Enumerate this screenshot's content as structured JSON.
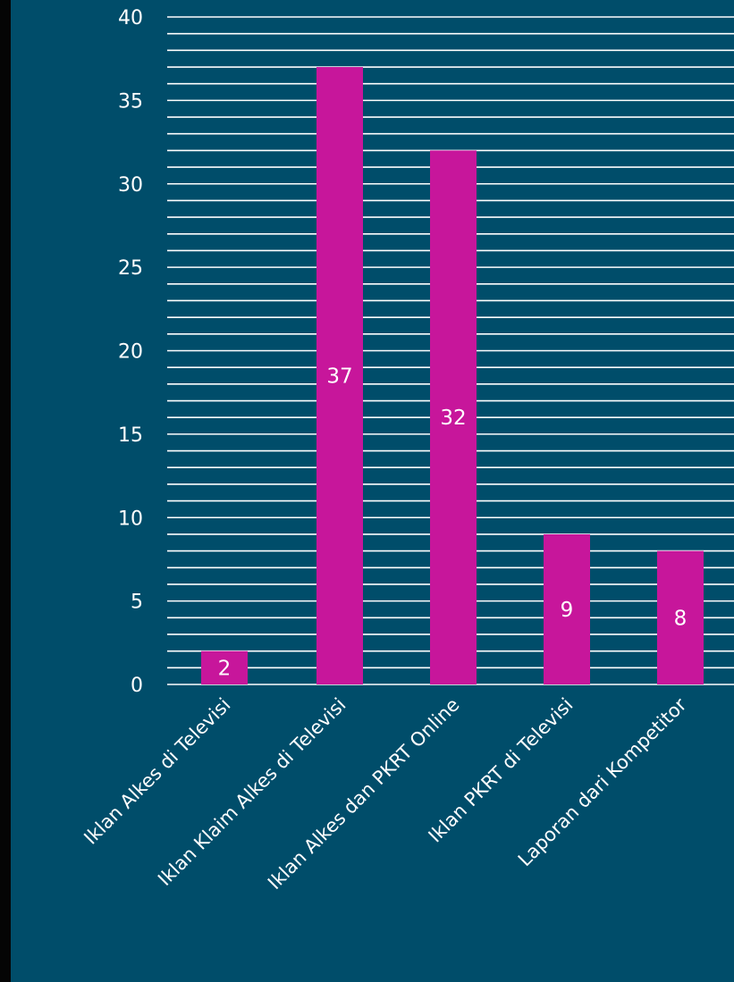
{
  "chart_data": {
    "type": "bar",
    "categories": [
      "Iklan Alkes di Televisi",
      "Iklan Klaim Alkes di Televisi",
      "Iklan Alkes dan PKRT Online",
      "Iklan PKRT di Televisi",
      "Laporan dari Kompetitor"
    ],
    "values": [
      2,
      37,
      32,
      9,
      8
    ],
    "data_labels": [
      "2",
      "37",
      "32",
      "9",
      "8"
    ],
    "ylim": [
      0,
      40
    ],
    "y_ticks": [
      0,
      5,
      10,
      15,
      20,
      25,
      30,
      35,
      40
    ],
    "y_tick_labels": [
      "0",
      "5",
      "10",
      "15",
      "20",
      "25",
      "30",
      "35",
      "40"
    ],
    "minor_gridline_step": 1,
    "grid": true,
    "legend": "none",
    "title": "",
    "xlabel": "",
    "ylabel": "",
    "colors": {
      "background": "#004d6a",
      "bar": "#c7169b",
      "gridline": "#ffffff",
      "text": "#ffffff",
      "left_band": "#050505"
    }
  }
}
